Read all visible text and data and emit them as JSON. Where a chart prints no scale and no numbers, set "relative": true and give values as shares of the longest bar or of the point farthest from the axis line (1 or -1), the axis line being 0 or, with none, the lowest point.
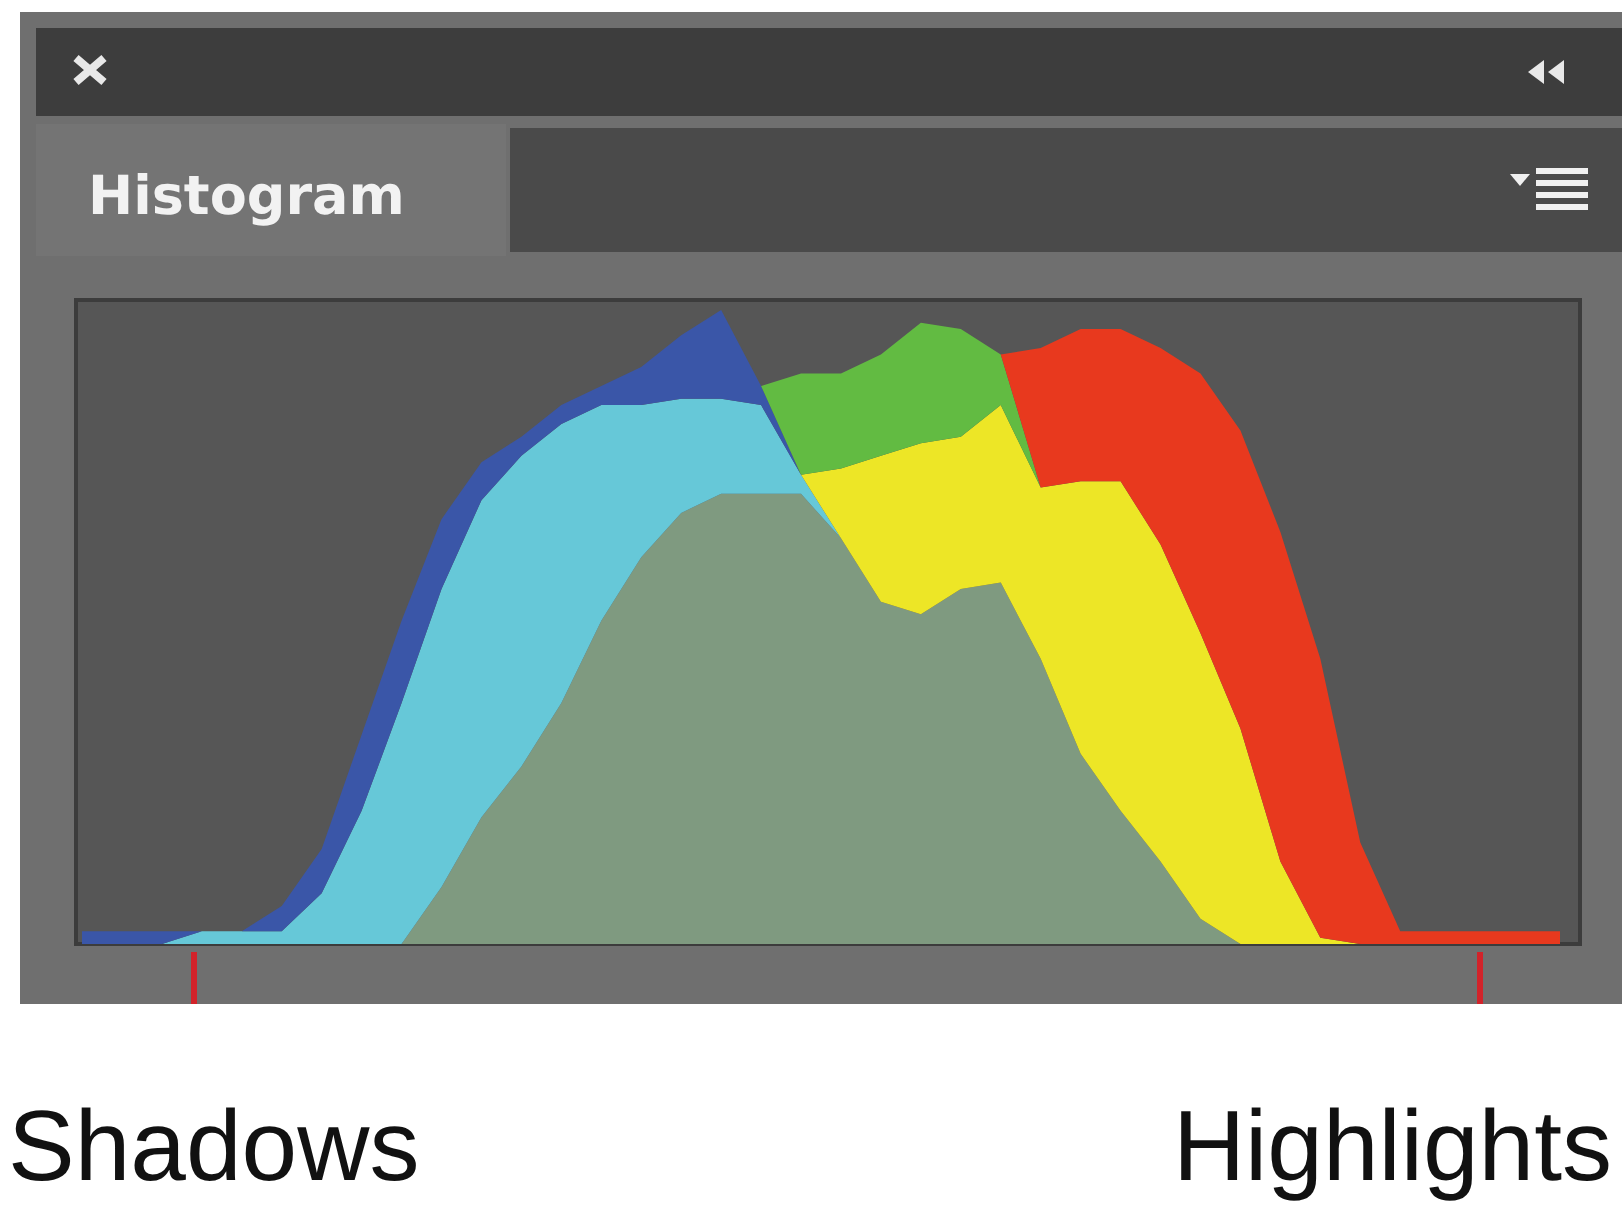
{
  "chart_data": {
    "type": "area",
    "title": "Histogram",
    "stacked": true,
    "relative": true,
    "categories": [
      null,
      null,
      null,
      null,
      null,
      null,
      null,
      null,
      null,
      null,
      null,
      null,
      null,
      null,
      null,
      null,
      null,
      null,
      null,
      null,
      null,
      null,
      null,
      null,
      null,
      null,
      null,
      null,
      null,
      null,
      null,
      null,
      null,
      null,
      null,
      null,
      null,
      null
    ],
    "series": [
      {
        "color": "#7f9a80",
        "values": [
          null,
          null,
          null,
          null,
          null,
          null,
          null,
          null,
          0,
          0.09,
          0.2,
          0.28,
          0.38,
          0.51,
          0.61,
          0.68,
          0.71,
          0.71,
          0.71,
          0.64,
          0.54,
          0.52,
          0.56,
          0.57,
          0.45,
          0.3,
          0.21,
          0.13,
          0.04,
          0,
          null,
          null,
          null,
          null,
          null,
          null,
          null,
          null
        ]
      },
      {
        "color": "#66c8d8",
        "values": [
          null,
          null,
          0,
          0.02,
          0.02,
          0.02,
          0.08,
          0.21,
          0.38,
          0.47,
          0.5,
          0.49,
          0.44,
          0.34,
          0.24,
          0.18,
          0.15,
          0.14,
          0.03,
          0,
          null,
          null,
          null,
          null,
          null,
          null,
          null,
          null,
          null,
          null,
          null,
          null,
          null,
          null,
          null,
          null,
          null,
          null
        ]
      },
      {
        "color": "#ede626",
        "values": [
          null,
          null,
          null,
          null,
          null,
          null,
          null,
          null,
          null,
          null,
          null,
          null,
          null,
          null,
          null,
          null,
          null,
          null,
          0,
          0.11,
          0.23,
          0.27,
          0.24,
          0.28,
          0.27,
          0.43,
          0.52,
          0.5,
          0.45,
          0.34,
          0.13,
          0.01,
          0,
          null,
          null,
          null,
          null,
          null
        ]
      },
      {
        "color": "#3a56a8",
        "values": [
          0.02,
          0.02,
          0.02,
          0,
          0,
          0.04,
          0.07,
          0.12,
          0.13,
          0.11,
          0.06,
          0.03,
          0.03,
          0.03,
          0.06,
          0.1,
          0.14,
          0.03,
          0,
          null,
          null,
          null,
          null,
          null,
          null,
          null,
          null,
          null,
          null,
          null,
          null,
          null,
          null,
          null,
          null,
          null,
          null,
          null
        ]
      },
      {
        "color": "#62bb42",
        "values": [
          null,
          null,
          null,
          null,
          null,
          null,
          null,
          null,
          null,
          null,
          null,
          null,
          null,
          null,
          null,
          null,
          null,
          0,
          0.16,
          0.15,
          0.16,
          0.19,
          0.17,
          0.08,
          0,
          null,
          null,
          null,
          null,
          null,
          null,
          null,
          null,
          null,
          null,
          null,
          null,
          null
        ]
      },
      {
        "color": "#e8391e",
        "values": [
          null,
          null,
          null,
          null,
          null,
          null,
          null,
          null,
          null,
          null,
          null,
          null,
          null,
          null,
          null,
          null,
          null,
          null,
          null,
          null,
          null,
          null,
          null,
          0,
          0.22,
          0.24,
          0.24,
          0.31,
          0.41,
          0.47,
          0.52,
          0.44,
          0.16,
          0.02,
          0.02,
          0.02,
          0.02,
          0.02
        ]
      }
    ],
    "annotations": [
      "Shadows",
      "Highlights"
    ]
  }
}
